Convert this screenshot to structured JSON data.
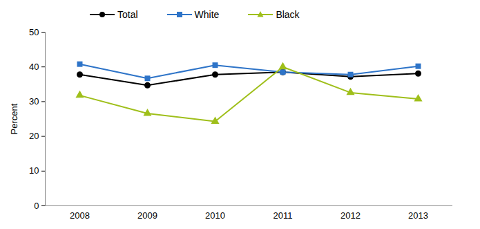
{
  "chart_data": {
    "type": "line",
    "categories": [
      "2008",
      "2009",
      "2010",
      "2011",
      "2012",
      "2013"
    ],
    "series": [
      {
        "name": "Total",
        "color": "#000000",
        "marker": "circle",
        "values": [
          37.8,
          34.7,
          37.8,
          38.5,
          37.2,
          38.1
        ]
      },
      {
        "name": "White",
        "color": "#2e74c8",
        "marker": "square",
        "values": [
          40.8,
          36.7,
          40.5,
          38.5,
          37.8,
          40.2
        ]
      },
      {
        "name": "Black",
        "color": "#9fbf1a",
        "marker": "triangle",
        "values": [
          31.8,
          26.6,
          24.3,
          40.0,
          32.6,
          30.8
        ]
      }
    ],
    "y_label": "Percent",
    "ylim": [
      0,
      50
    ],
    "yticks": [
      0,
      10,
      20,
      30,
      40,
      50
    ],
    "grid": false,
    "legend": "top"
  }
}
